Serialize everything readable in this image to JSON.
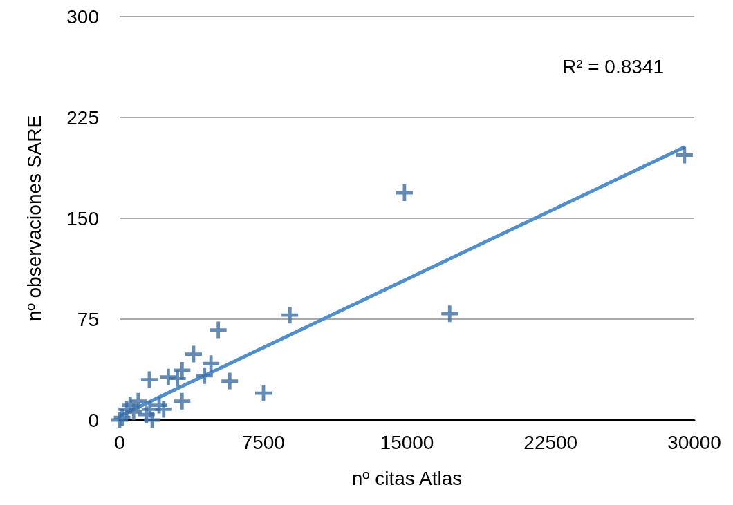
{
  "chart_data": {
    "type": "scatter",
    "xlabel": "nº citas Atlas",
    "ylabel": "nº observaciones SARE",
    "annotations": [
      "R² = 0.8341"
    ],
    "xlim": [
      0,
      30000
    ],
    "xticks": [
      0,
      7500,
      15000,
      22500,
      30000
    ],
    "ylim": [
      0,
      300
    ],
    "yticks": [
      0,
      75,
      150,
      225,
      300
    ],
    "grid": "y",
    "marker": "cross",
    "series": [
      {
        "color": "#3b6ea5",
        "x": [
          8890,
          5150,
          3860,
          4770,
          4430,
          5750,
          7510,
          1550,
          2540,
          3260,
          3020,
          3260,
          130,
          550,
          970,
          1580,
          1700,
          2060,
          2300,
          1400,
          730,
          370,
          0,
          14870,
          17230,
          29490
        ],
        "values": [
          78,
          67,
          49,
          42,
          33,
          29,
          20,
          30,
          32,
          37,
          31,
          14,
          2,
          11,
          14,
          8,
          0,
          11,
          8,
          4,
          6,
          8,
          0,
          169,
          79,
          197
        ]
      },
      {
        "type": "line",
        "color": "#4f8fd0",
        "marker": "none",
        "x": [
          0,
          29500
        ],
        "values": [
          3,
          203
        ]
      }
    ]
  }
}
